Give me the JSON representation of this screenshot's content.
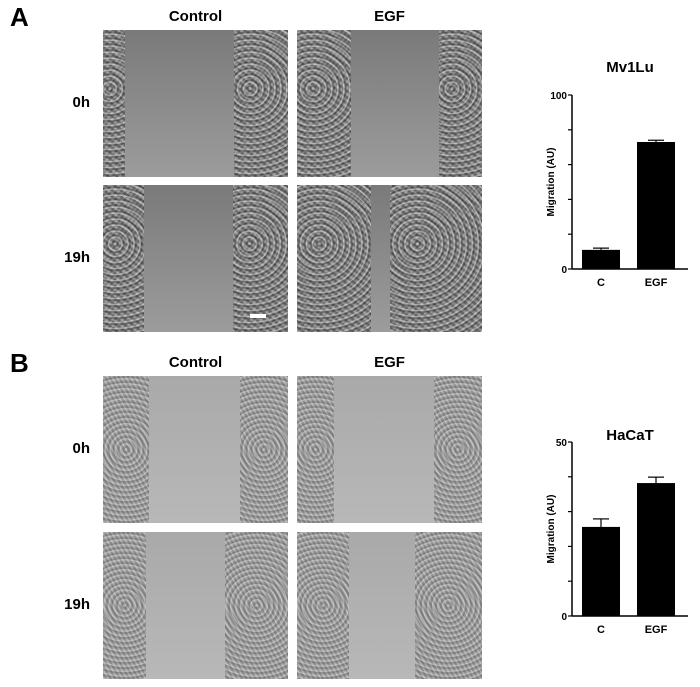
{
  "panels": [
    {
      "letter": "A",
      "columns": [
        "Control",
        "EGF"
      ],
      "rows": [
        "0h",
        "19h"
      ],
      "images": [
        {
          "condition": "Control",
          "time": "0h",
          "wound": [
            12,
            71
          ]
        },
        {
          "condition": "EGF",
          "time": "0h",
          "wound": [
            29,
            77
          ]
        },
        {
          "condition": "Control",
          "time": "19h",
          "wound": [
            22,
            70
          ]
        },
        {
          "condition": "EGF",
          "time": "19h",
          "wound": [
            40,
            50
          ]
        }
      ]
    },
    {
      "letter": "B",
      "columns": [
        "Control",
        "EGF"
      ],
      "rows": [
        "0h",
        "19h"
      ],
      "images": [
        {
          "condition": "Control",
          "time": "0h",
          "wound": [
            25,
            74
          ]
        },
        {
          "condition": "EGF",
          "time": "0h",
          "wound": [
            20,
            74
          ]
        },
        {
          "condition": "Control",
          "time": "19h",
          "wound": [
            23,
            66
          ]
        },
        {
          "condition": "EGF",
          "time": "19h",
          "wound": [
            28,
            64
          ]
        }
      ]
    }
  ],
  "chart_data": [
    {
      "type": "bar",
      "title": "Mv1Lu",
      "ylabel": "Migration (AU)",
      "xlabel": "",
      "categories": [
        "C",
        "EGF"
      ],
      "values": [
        11,
        73
      ],
      "errors": [
        1,
        1
      ],
      "ylim": [
        0,
        100
      ],
      "yticks": [
        0,
        20,
        40,
        60,
        80,
        100
      ],
      "ytick_labels": [
        "0",
        "",
        "",
        "",
        "",
        "100"
      ],
      "bar_color": "#000000",
      "grid": false
    },
    {
      "type": "bar",
      "title": "HaCaT",
      "ylabel": "Migration (AU)",
      "xlabel": "",
      "categories": [
        "C",
        "EGF"
      ],
      "values": [
        25.6,
        38.2
      ],
      "errors": [
        2.3,
        1.7
      ],
      "ylim": [
        0,
        50
      ],
      "yticks": [
        0,
        10,
        20,
        30,
        40,
        50
      ],
      "ytick_labels": [
        "0",
        "",
        "",
        "",
        "",
        "50"
      ],
      "bar_color": "#000000",
      "grid": false
    }
  ]
}
